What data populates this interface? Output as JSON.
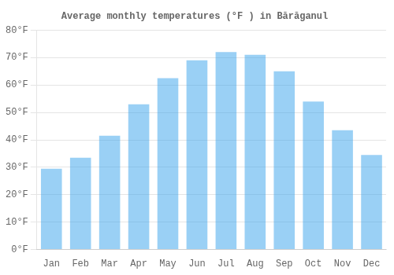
{
  "chart_data": {
    "type": "bar",
    "title": "Average monthly temperatures (°F ) in Bărăganul",
    "categories": [
      "Jan",
      "Feb",
      "Mar",
      "Apr",
      "May",
      "Jun",
      "Jul",
      "Aug",
      "Sep",
      "Oct",
      "Nov",
      "Dec"
    ],
    "values": [
      29.5,
      33.5,
      41.5,
      53.0,
      62.5,
      69.0,
      72.0,
      71.0,
      65.0,
      54.0,
      43.5,
      34.5
    ],
    "ylim": [
      0,
      80
    ],
    "yticks": [
      {
        "value": 0,
        "label": "0°F"
      },
      {
        "value": 10,
        "label": "10°F"
      },
      {
        "value": 20,
        "label": "20°F"
      },
      {
        "value": 30,
        "label": "30°F"
      },
      {
        "value": 40,
        "label": "40°F"
      },
      {
        "value": 50,
        "label": "50°F"
      },
      {
        "value": 60,
        "label": "60°F"
      },
      {
        "value": 70,
        "label": "70°F"
      },
      {
        "value": 80,
        "label": "80°F"
      }
    ],
    "grid": true
  }
}
